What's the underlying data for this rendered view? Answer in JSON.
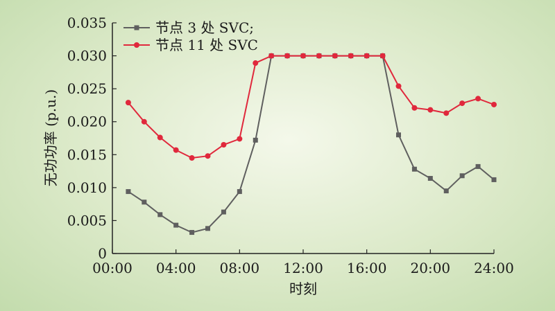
{
  "chart_data": {
    "type": "line",
    "xlabel": "时刻",
    "ylabel": "无功功率 (p.u.)",
    "xlim": [
      0,
      24
    ],
    "ylim": [
      0,
      0.035
    ],
    "x_ticks": [
      0,
      4,
      8,
      12,
      16,
      20,
      24
    ],
    "x_tick_labels": [
      "00:00",
      "04:00",
      "08:00",
      "12:00",
      "16:00",
      "20:00",
      "24:00"
    ],
    "y_ticks": [
      0,
      0.005,
      0.01,
      0.015,
      0.02,
      0.025,
      0.03,
      0.035
    ],
    "y_tick_labels": [
      "0",
      "0.005",
      "0.010",
      "0.015",
      "0.020",
      "0.025",
      "0.030",
      "0.035"
    ],
    "x": [
      1,
      2,
      3,
      4,
      5,
      6,
      7,
      8,
      9,
      10,
      11,
      12,
      13,
      14,
      15,
      16,
      17,
      18,
      19,
      20,
      21,
      22,
      23,
      24
    ],
    "legend_position": "top-left",
    "grid": false,
    "series": [
      {
        "name": "节点 3 处 SVC;",
        "color": "#5f5f5f",
        "marker": "square",
        "values": [
          0.0094,
          0.0078,
          0.0059,
          0.0043,
          0.0032,
          0.0038,
          0.0063,
          0.0094,
          0.0172,
          0.03,
          0.03,
          0.03,
          0.03,
          0.03,
          0.03,
          0.03,
          0.03,
          0.018,
          0.0128,
          0.0114,
          0.0095,
          0.0118,
          0.0132,
          0.0112
        ]
      },
      {
        "name": "节点 11 处 SVC",
        "color": "#e0283c",
        "marker": "circle",
        "values": [
          0.0229,
          0.02,
          0.0176,
          0.0157,
          0.0145,
          0.0148,
          0.0165,
          0.0174,
          0.0289,
          0.03,
          0.03,
          0.03,
          0.03,
          0.03,
          0.03,
          0.03,
          0.03,
          0.0254,
          0.0221,
          0.0218,
          0.0213,
          0.0228,
          0.0235,
          0.0226
        ]
      }
    ]
  }
}
